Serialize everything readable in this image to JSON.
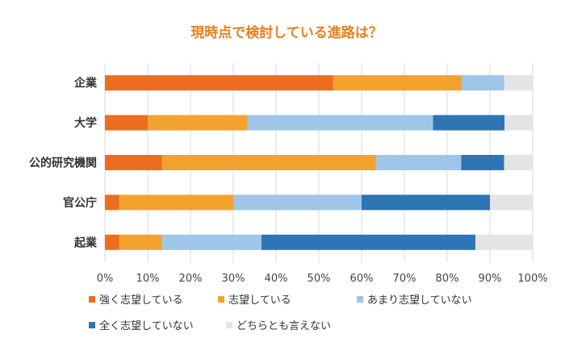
{
  "chart_data": {
    "type": "bar",
    "orientation": "horizontal",
    "stacked": true,
    "title": "現時点で検討している進路は？",
    "categories": [
      "企業",
      "大学",
      "公的研究機関",
      "官公庁",
      "起業"
    ],
    "series": [
      {
        "name": "強く志望している",
        "color": "#ec6d1f",
        "values": [
          53.3,
          10.0,
          13.3,
          3.3,
          3.3
        ]
      },
      {
        "name": "志望している",
        "color": "#f3a22e",
        "values": [
          30.0,
          23.3,
          50.0,
          26.7,
          10.0
        ]
      },
      {
        "name": "あまり志望していない",
        "color": "#9fc5e8",
        "values": [
          10.0,
          43.4,
          20.0,
          30.0,
          23.3
        ]
      },
      {
        "name": "全く志望していない",
        "color": "#2e75b6",
        "values": [
          0.0,
          16.7,
          10.0,
          30.0,
          50.0
        ]
      },
      {
        "name": "どちらとも言えない",
        "color": "#e4e4e4",
        "values": [
          6.7,
          6.6,
          6.7,
          10.0,
          13.4
        ]
      }
    ],
    "xlim": [
      0,
      100
    ],
    "xticks": [
      "0%",
      "10%",
      "20%",
      "30%",
      "40%",
      "50%",
      "60%",
      "70%",
      "80%",
      "90%",
      "100%"
    ],
    "xlabel": "",
    "ylabel": "",
    "grid": true,
    "legend_position": "bottom"
  }
}
